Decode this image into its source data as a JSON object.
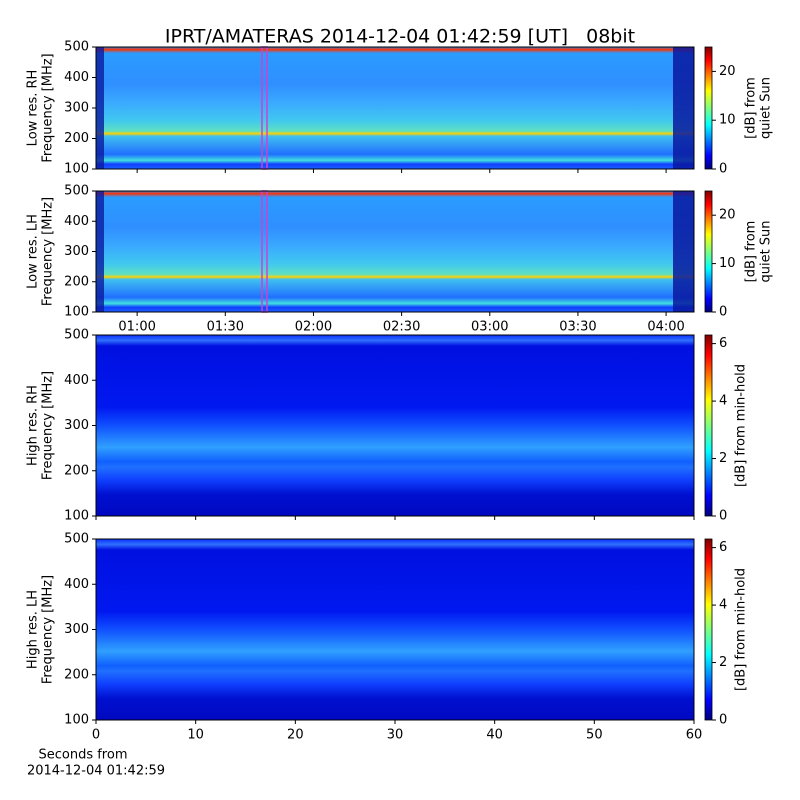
{
  "title": "IPRT/AMATERAS 2014-12-04 01:42:59 [UT]   08bit",
  "chart_data": [
    {
      "type": "heatmap",
      "colormap": "jet",
      "ylabel": [
        "Low res. RH",
        "Frequency [MHz]"
      ],
      "ylim": [
        100,
        500
      ],
      "yticks": [
        100,
        200,
        300,
        400,
        500
      ],
      "xlim": [
        46,
        249.5
      ],
      "xticks": [
        {
          "value": 60,
          "label": "01:00"
        },
        {
          "value": 90,
          "label": "01:30"
        },
        {
          "value": 120,
          "label": "02:00"
        },
        {
          "value": 150,
          "label": "02:30"
        },
        {
          "value": 180,
          "label": "03:00"
        },
        {
          "value": 210,
          "label": "03:30"
        },
        {
          "value": 240,
          "label": "04:00"
        }
      ],
      "show_xticklabels": false,
      "colorbar": {
        "label": [
          "[dB] from",
          "quiet Sun"
        ],
        "lim": [
          0,
          25
        ],
        "ticks": [
          0,
          10,
          20
        ]
      }
    },
    {
      "type": "heatmap",
      "colormap": "jet",
      "ylabel": [
        "Low res. LH",
        "Frequency [MHz]"
      ],
      "ylim": [
        100,
        500
      ],
      "yticks": [
        100,
        200,
        300,
        400,
        500
      ],
      "xlim": [
        46,
        249.5
      ],
      "xticks": [
        {
          "value": 60,
          "label": "01:00"
        },
        {
          "value": 90,
          "label": "01:30"
        },
        {
          "value": 120,
          "label": "02:00"
        },
        {
          "value": 150,
          "label": "02:30"
        },
        {
          "value": 180,
          "label": "03:00"
        },
        {
          "value": 210,
          "label": "03:30"
        },
        {
          "value": 240,
          "label": "04:00"
        }
      ],
      "show_xticklabels": true,
      "colorbar": {
        "label": [
          "[dB] from",
          "quiet Sun"
        ],
        "lim": [
          0,
          25
        ],
        "ticks": [
          0,
          10,
          20
        ]
      }
    },
    {
      "type": "heatmap",
      "colormap": "jet",
      "ylabel": [
        "High res. RH",
        "Frequency [MHz]"
      ],
      "ylim": [
        100,
        500
      ],
      "yticks": [
        100,
        200,
        300,
        400,
        500
      ],
      "xlim": [
        0,
        60
      ],
      "xticks": [
        0,
        10,
        20,
        30,
        40,
        50,
        60
      ],
      "show_xticklabels": false,
      "colorbar": {
        "label": [
          "[dB] from min-hold"
        ],
        "lim": [
          0,
          6.3
        ],
        "ticks": [
          0,
          2,
          4,
          6
        ]
      }
    },
    {
      "type": "heatmap",
      "colormap": "jet",
      "ylabel": [
        "High res. LH",
        "Frequency [MHz]"
      ],
      "ylim": [
        100,
        500
      ],
      "yticks": [
        100,
        200,
        300,
        400,
        500
      ],
      "xlim": [
        0,
        60
      ],
      "xticks": [
        0,
        10,
        20,
        30,
        40,
        50,
        60
      ],
      "show_xticklabels": true,
      "xlabel": [
        "Seconds from",
        "2014-12-04 01:42:59"
      ],
      "colorbar": {
        "label": [
          "[dB] from min-hold"
        ],
        "lim": [
          0,
          6.3
        ],
        "ticks": [
          0,
          2,
          4,
          6
        ]
      }
    }
  ]
}
